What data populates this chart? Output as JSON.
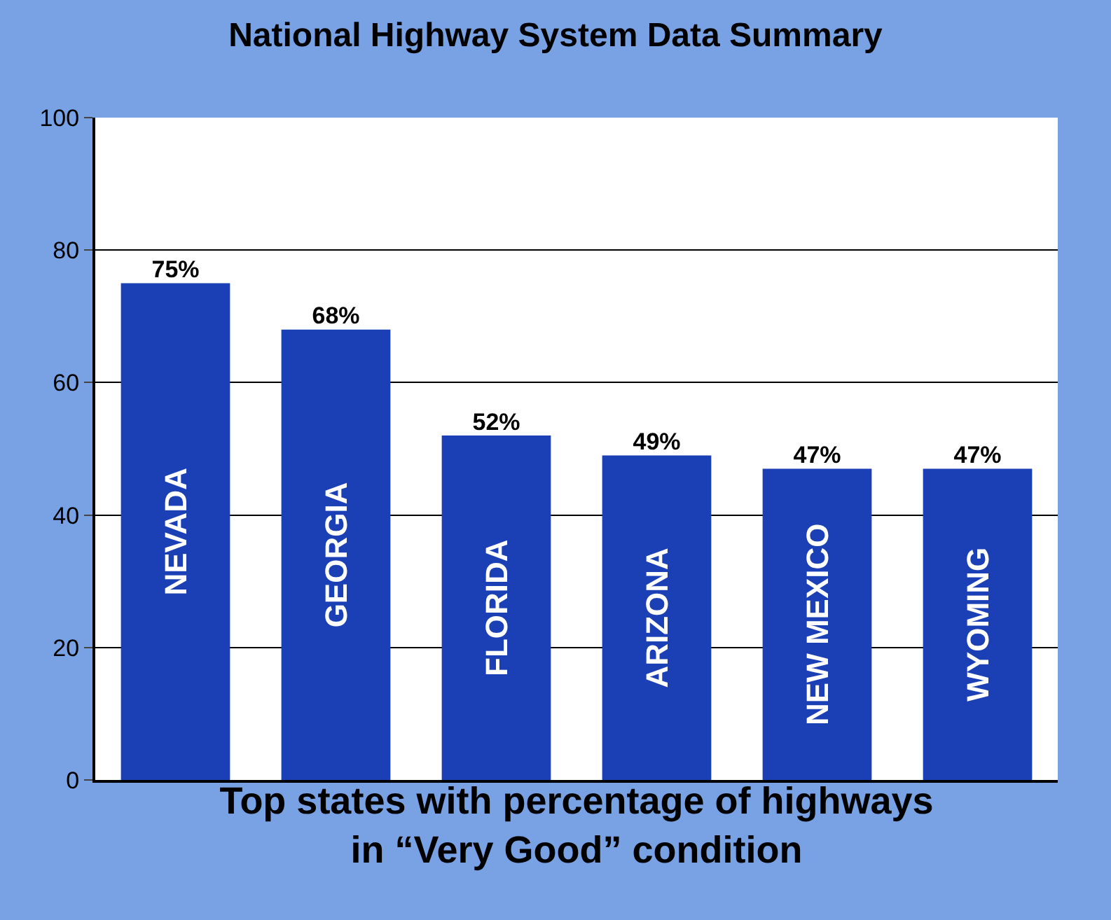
{
  "chart_data": {
    "type": "bar",
    "title": "National Highway System Data Summary",
    "xlabel": "Top states with percentage of highways\nin “Very Good” condition",
    "categories": [
      "NEVADA",
      "GEORGIA",
      "FLORIDA",
      "ARIZONA",
      "NEW MEXICO",
      "WYOMING"
    ],
    "values": [
      75,
      68,
      52,
      49,
      47,
      47
    ],
    "value_labels": [
      "75%",
      "68%",
      "52%",
      "49%",
      "47%",
      "47%"
    ],
    "color": "#1b3fb4",
    "ylim": [
      0,
      100
    ],
    "yticks": [
      0,
      20,
      40,
      60,
      80,
      100
    ],
    "grid": "y"
  }
}
